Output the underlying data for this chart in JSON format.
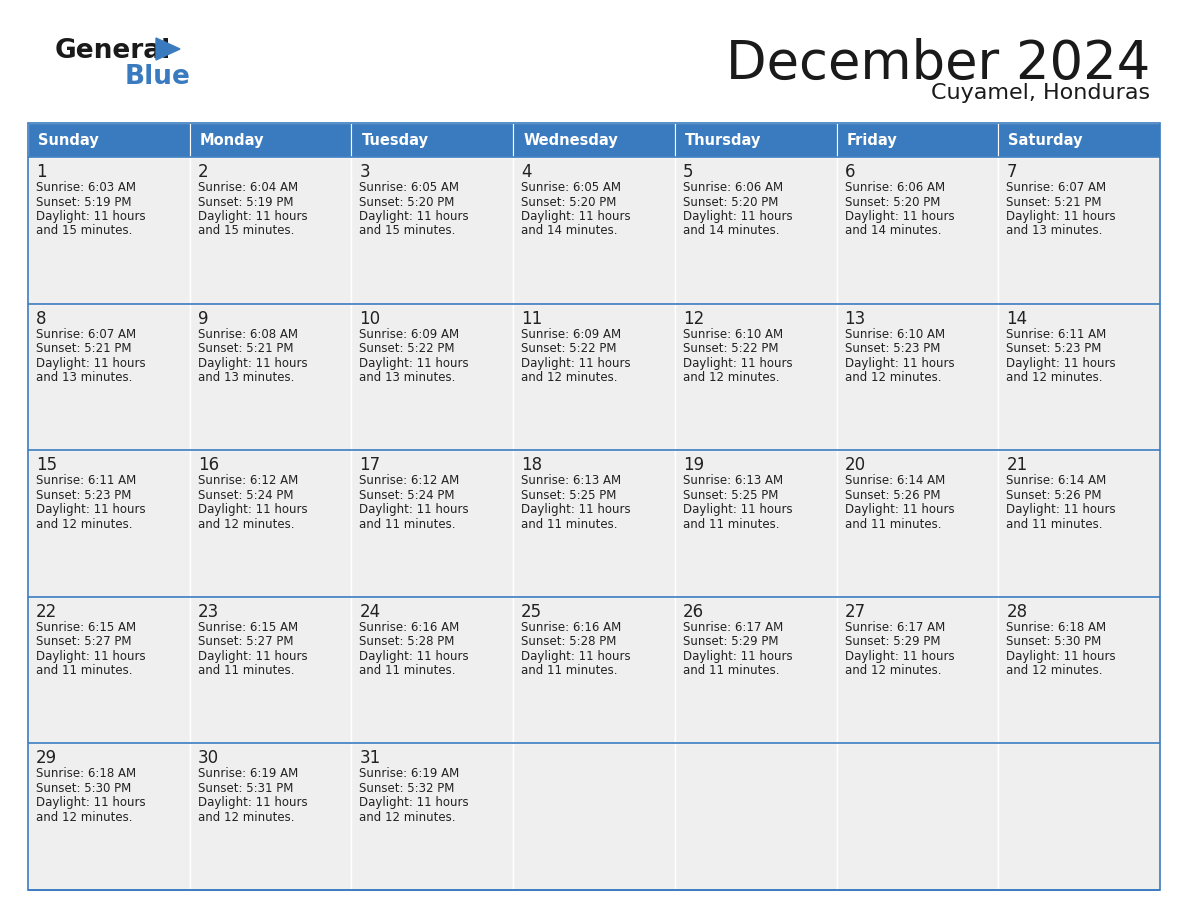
{
  "title": "December 2024",
  "subtitle": "Cuyamel, Honduras",
  "header_color": "#3a7bbf",
  "header_text_color": "#ffffff",
  "cell_bg_color": "#efefef",
  "border_color": "#3a7bbf",
  "text_color": "#222222",
  "day_names": [
    "Sunday",
    "Monday",
    "Tuesday",
    "Wednesday",
    "Thursday",
    "Friday",
    "Saturday"
  ],
  "weeks": [
    [
      {
        "day": "1",
        "sunrise": "6:03 AM",
        "sunset": "5:19 PM",
        "daylight": "11 hours and 15 minutes."
      },
      {
        "day": "2",
        "sunrise": "6:04 AM",
        "sunset": "5:19 PM",
        "daylight": "11 hours and 15 minutes."
      },
      {
        "day": "3",
        "sunrise": "6:05 AM",
        "sunset": "5:20 PM",
        "daylight": "11 hours and 15 minutes."
      },
      {
        "day": "4",
        "sunrise": "6:05 AM",
        "sunset": "5:20 PM",
        "daylight": "11 hours and 14 minutes."
      },
      {
        "day": "5",
        "sunrise": "6:06 AM",
        "sunset": "5:20 PM",
        "daylight": "11 hours and 14 minutes."
      },
      {
        "day": "6",
        "sunrise": "6:06 AM",
        "sunset": "5:20 PM",
        "daylight": "11 hours and 14 minutes."
      },
      {
        "day": "7",
        "sunrise": "6:07 AM",
        "sunset": "5:21 PM",
        "daylight": "11 hours and 13 minutes."
      }
    ],
    [
      {
        "day": "8",
        "sunrise": "6:07 AM",
        "sunset": "5:21 PM",
        "daylight": "11 hours and 13 minutes."
      },
      {
        "day": "9",
        "sunrise": "6:08 AM",
        "sunset": "5:21 PM",
        "daylight": "11 hours and 13 minutes."
      },
      {
        "day": "10",
        "sunrise": "6:09 AM",
        "sunset": "5:22 PM",
        "daylight": "11 hours and 13 minutes."
      },
      {
        "day": "11",
        "sunrise": "6:09 AM",
        "sunset": "5:22 PM",
        "daylight": "11 hours and 12 minutes."
      },
      {
        "day": "12",
        "sunrise": "6:10 AM",
        "sunset": "5:22 PM",
        "daylight": "11 hours and 12 minutes."
      },
      {
        "day": "13",
        "sunrise": "6:10 AM",
        "sunset": "5:23 PM",
        "daylight": "11 hours and 12 minutes."
      },
      {
        "day": "14",
        "sunrise": "6:11 AM",
        "sunset": "5:23 PM",
        "daylight": "11 hours and 12 minutes."
      }
    ],
    [
      {
        "day": "15",
        "sunrise": "6:11 AM",
        "sunset": "5:23 PM",
        "daylight": "11 hours and 12 minutes."
      },
      {
        "day": "16",
        "sunrise": "6:12 AM",
        "sunset": "5:24 PM",
        "daylight": "11 hours and 12 minutes."
      },
      {
        "day": "17",
        "sunrise": "6:12 AM",
        "sunset": "5:24 PM",
        "daylight": "11 hours and 11 minutes."
      },
      {
        "day": "18",
        "sunrise": "6:13 AM",
        "sunset": "5:25 PM",
        "daylight": "11 hours and 11 minutes."
      },
      {
        "day": "19",
        "sunrise": "6:13 AM",
        "sunset": "5:25 PM",
        "daylight": "11 hours and 11 minutes."
      },
      {
        "day": "20",
        "sunrise": "6:14 AM",
        "sunset": "5:26 PM",
        "daylight": "11 hours and 11 minutes."
      },
      {
        "day": "21",
        "sunrise": "6:14 AM",
        "sunset": "5:26 PM",
        "daylight": "11 hours and 11 minutes."
      }
    ],
    [
      {
        "day": "22",
        "sunrise": "6:15 AM",
        "sunset": "5:27 PM",
        "daylight": "11 hours and 11 minutes."
      },
      {
        "day": "23",
        "sunrise": "6:15 AM",
        "sunset": "5:27 PM",
        "daylight": "11 hours and 11 minutes."
      },
      {
        "day": "24",
        "sunrise": "6:16 AM",
        "sunset": "5:28 PM",
        "daylight": "11 hours and 11 minutes."
      },
      {
        "day": "25",
        "sunrise": "6:16 AM",
        "sunset": "5:28 PM",
        "daylight": "11 hours and 11 minutes."
      },
      {
        "day": "26",
        "sunrise": "6:17 AM",
        "sunset": "5:29 PM",
        "daylight": "11 hours and 11 minutes."
      },
      {
        "day": "27",
        "sunrise": "6:17 AM",
        "sunset": "5:29 PM",
        "daylight": "11 hours and 12 minutes."
      },
      {
        "day": "28",
        "sunrise": "6:18 AM",
        "sunset": "5:30 PM",
        "daylight": "11 hours and 12 minutes."
      }
    ],
    [
      {
        "day": "29",
        "sunrise": "6:18 AM",
        "sunset": "5:30 PM",
        "daylight": "11 hours and 12 minutes."
      },
      {
        "day": "30",
        "sunrise": "6:19 AM",
        "sunset": "5:31 PM",
        "daylight": "11 hours and 12 minutes."
      },
      {
        "day": "31",
        "sunrise": "6:19 AM",
        "sunset": "5:32 PM",
        "daylight": "11 hours and 12 minutes."
      },
      null,
      null,
      null,
      null
    ]
  ]
}
